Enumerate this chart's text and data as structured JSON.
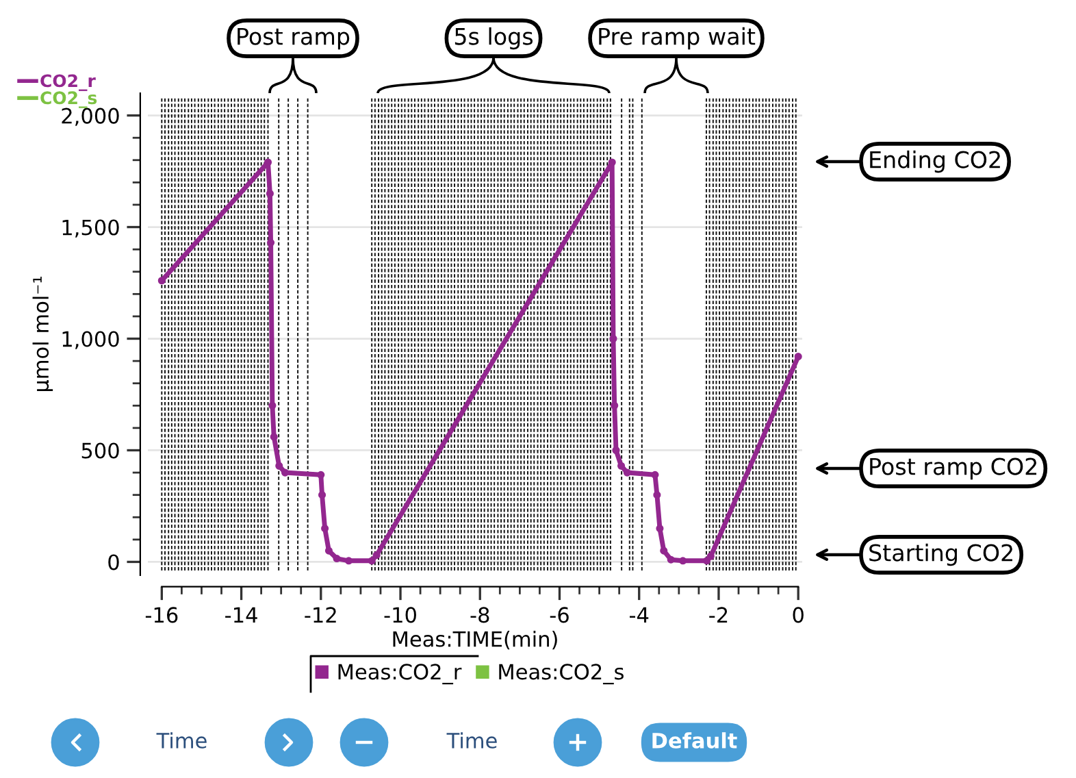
{
  "chart_data": {
    "type": "line",
    "xlabel": "Meas:TIME(min)",
    "ylabel": "µmol mol⁻¹",
    "xlim": [
      -16.35,
      0.1
    ],
    "ylim": [
      -60,
      2100
    ],
    "xticks": [
      -16,
      {
        "value": -15.5,
        "label": null
      },
      -14,
      {
        "value": -15,
        "label": null
      },
      {
        "value": -14.5,
        "label": null
      },
      {
        "value": -13.5,
        "label": null
      },
      {
        "value": -13,
        "label": null
      },
      -12,
      {
        "value": -12.5,
        "label": null
      },
      {
        "value": -11.5,
        "label": null
      },
      {
        "value": -11,
        "label": null
      },
      -10,
      {
        "value": -10.5,
        "label": null
      },
      {
        "value": -9.5,
        "label": null
      },
      {
        "value": -9,
        "label": null
      },
      -8,
      {
        "value": -8.5,
        "label": null
      },
      {
        "value": -7.5,
        "label": null
      },
      {
        "value": -7,
        "label": null
      },
      -6,
      {
        "value": -6.5,
        "label": null
      },
      {
        "value": -5.5,
        "label": null
      },
      {
        "value": -5,
        "label": null
      },
      -4,
      {
        "value": -4.5,
        "label": null
      },
      {
        "value": -3.5,
        "label": null
      },
      {
        "value": -3,
        "label": null
      },
      -2,
      {
        "value": -2.5,
        "label": null
      },
      {
        "value": -1.5,
        "label": null
      },
      {
        "value": -1,
        "label": null
      },
      {
        "value": -0.5,
        "label": null
      },
      0
    ],
    "yticks": [
      0,
      {
        "value": 100,
        "label": null
      },
      {
        "value": 200,
        "label": null
      },
      {
        "value": 300,
        "label": null
      },
      {
        "value": 400,
        "label": null
      },
      500,
      {
        "value": 600,
        "label": null
      },
      {
        "value": 700,
        "label": null
      },
      {
        "value": 800,
        "label": null
      },
      {
        "value": 900,
        "label": null
      },
      {
        "value": 1000,
        "label": "1,000"
      },
      {
        "value": 1100,
        "label": null
      },
      {
        "value": 1200,
        "label": null
      },
      {
        "value": 1300,
        "label": null
      },
      {
        "value": 1400,
        "label": null
      },
      {
        "value": 1500,
        "label": "1,500"
      },
      {
        "value": 1600,
        "label": null
      },
      {
        "value": 1700,
        "label": null
      },
      {
        "value": 1800,
        "label": null
      },
      {
        "value": 1900,
        "label": null
      },
      {
        "value": 2000,
        "label": "2,000"
      }
    ],
    "grid": "y",
    "legend": "top left",
    "marker": "circle",
    "line_style": "solid",
    "series": [
      {
        "name": "CO2_r",
        "color": "#93278f",
        "x": [
          -16,
          -13.33,
          -13.28,
          -13.26,
          -13.22,
          -13.18,
          -13.05,
          -12.9,
          -12.0,
          -11.97,
          -11.9,
          -11.8,
          -11.6,
          -11.3,
          -10.72,
          -10.6,
          -4.68,
          -4.65,
          -4.62,
          -4.58,
          -4.45,
          -4.3,
          -3.6,
          -3.55,
          -3.48,
          -3.38,
          -3.2,
          -2.9,
          -2.3,
          -2.2,
          0
        ],
        "values": [
          1260,
          1790,
          1650,
          1430,
          700,
          560,
          430,
          400,
          390,
          300,
          150,
          50,
          15,
          5,
          5,
          30,
          1790,
          1000,
          700,
          500,
          430,
          400,
          390,
          300,
          150,
          50,
          10,
          5,
          5,
          25,
          920
        ]
      },
      {
        "name": "CO2_s",
        "color": "#7dc242"
      }
    ],
    "annotations": [
      "Post ramp",
      "5s logs",
      "Pre ramp wait",
      "Ending CO2",
      "Post ramp CO2",
      "Starting CO2",
      "Meas:CO2_r",
      "Meas:CO2_s",
      "Time",
      "Time",
      "Default"
    ],
    "ref_lines": [
      {
        "axis": "x",
        "value": -16.0,
        "line_style": "dashed"
      },
      {
        "axis": "x",
        "value": -15.92,
        "line_style": "dashed"
      },
      {
        "axis": "x",
        "value": -15.83,
        "line_style": "dashed"
      },
      {
        "axis": "x",
        "value": -15.75,
        "line_style": "dashed"
      },
      {
        "axis": "x",
        "value": -15.67,
        "line_style": "dashed"
      },
      {
        "axis": "x",
        "value": -15.58,
        "line_style": "dashed"
      },
      {
        "axis": "x",
        "value": -15.5,
        "line_style": "dashed"
      },
      {
        "axis": "x",
        "value": -15.42,
        "line_style": "dashed"
      },
      {
        "axis": "x",
        "value": -15.33,
        "line_style": "dashed"
      },
      {
        "axis": "x",
        "value": -15.25,
        "line_style": "dashed"
      },
      {
        "axis": "x",
        "value": -15.17,
        "line_style": "dashed"
      },
      {
        "axis": "x",
        "value": -15.08,
        "line_style": "dashed"
      },
      {
        "axis": "x",
        "value": -15.0,
        "line_style": "dashed"
      },
      {
        "axis": "x",
        "value": -14.92,
        "line_style": "dashed"
      },
      {
        "axis": "x",
        "value": -14.83,
        "line_style": "dashed"
      },
      {
        "axis": "x",
        "value": -14.75,
        "line_style": "dashed"
      },
      {
        "axis": "x",
        "value": -14.67,
        "line_style": "dashed"
      },
      {
        "axis": "x",
        "value": -14.58,
        "line_style": "dashed"
      },
      {
        "axis": "x",
        "value": -14.5,
        "line_style": "dashed"
      },
      {
        "axis": "x",
        "value": -14.42,
        "line_style": "dashed"
      },
      {
        "axis": "x",
        "value": -14.33,
        "line_style": "dashed"
      },
      {
        "axis": "x",
        "value": -14.25,
        "line_style": "dashed"
      },
      {
        "axis": "x",
        "value": -14.17,
        "line_style": "dashed"
      },
      {
        "axis": "x",
        "value": -14.08,
        "line_style": "dashed"
      },
      {
        "axis": "x",
        "value": -14.0,
        "line_style": "dashed"
      },
      {
        "axis": "x",
        "value": -13.92,
        "line_style": "dashed"
      },
      {
        "axis": "x",
        "value": -13.83,
        "line_style": "dashed"
      },
      {
        "axis": "x",
        "value": -13.75,
        "line_style": "dashed"
      },
      {
        "axis": "x",
        "value": -13.67,
        "line_style": "dashed"
      },
      {
        "axis": "x",
        "value": -13.58,
        "line_style": "dashed"
      },
      {
        "axis": "x",
        "value": -13.5,
        "line_style": "dashed"
      },
      {
        "axis": "x",
        "value": -13.42,
        "line_style": "dashed"
      },
      {
        "axis": "x",
        "value": -13.33,
        "line_style": "dashed"
      },
      {
        "axis": "x",
        "value": -13.06,
        "line_style": "dashed"
      },
      {
        "axis": "x",
        "value": -12.82,
        "line_style": "dashed"
      },
      {
        "axis": "x",
        "value": -12.58,
        "line_style": "dashed"
      },
      {
        "axis": "x",
        "value": -12.33,
        "line_style": "dashed"
      },
      {
        "axis": "x",
        "value": -10.72,
        "line_style": "dashed"
      },
      {
        "axis": "x",
        "value": -10.64,
        "line_style": "dashed"
      },
      {
        "axis": "x",
        "value": -10.55,
        "line_style": "dashed"
      },
      {
        "axis": "x",
        "value": -10.47,
        "line_style": "dashed"
      },
      {
        "axis": "x",
        "value": -10.39,
        "line_style": "dashed"
      },
      {
        "axis": "x",
        "value": -10.3,
        "line_style": "dashed"
      },
      {
        "axis": "x",
        "value": -10.22,
        "line_style": "dashed"
      },
      {
        "axis": "x",
        "value": -10.14,
        "line_style": "dashed"
      },
      {
        "axis": "x",
        "value": -10.05,
        "line_style": "dashed"
      },
      {
        "axis": "x",
        "value": -9.97,
        "line_style": "dashed"
      },
      {
        "axis": "x",
        "value": -9.89,
        "line_style": "dashed"
      },
      {
        "axis": "x",
        "value": -9.8,
        "line_style": "dashed"
      },
      {
        "axis": "x",
        "value": -9.72,
        "line_style": "dashed"
      },
      {
        "axis": "x",
        "value": -9.64,
        "line_style": "dashed"
      },
      {
        "axis": "x",
        "value": -9.55,
        "line_style": "dashed"
      },
      {
        "axis": "x",
        "value": -9.47,
        "line_style": "dashed"
      },
      {
        "axis": "x",
        "value": -9.39,
        "line_style": "dashed"
      },
      {
        "axis": "x",
        "value": -9.3,
        "line_style": "dashed"
      },
      {
        "axis": "x",
        "value": -9.22,
        "line_style": "dashed"
      },
      {
        "axis": "x",
        "value": -9.14,
        "line_style": "dashed"
      },
      {
        "axis": "x",
        "value": -9.05,
        "line_style": "dashed"
      },
      {
        "axis": "x",
        "value": -8.97,
        "line_style": "dashed"
      },
      {
        "axis": "x",
        "value": -8.89,
        "line_style": "dashed"
      },
      {
        "axis": "x",
        "value": -8.8,
        "line_style": "dashed"
      },
      {
        "axis": "x",
        "value": -8.72,
        "line_style": "dashed"
      },
      {
        "axis": "x",
        "value": -8.64,
        "line_style": "dashed"
      },
      {
        "axis": "x",
        "value": -8.55,
        "line_style": "dashed"
      },
      {
        "axis": "x",
        "value": -8.47,
        "line_style": "dashed"
      },
      {
        "axis": "x",
        "value": -8.39,
        "line_style": "dashed"
      },
      {
        "axis": "x",
        "value": -8.3,
        "line_style": "dashed"
      },
      {
        "axis": "x",
        "value": -8.22,
        "line_style": "dashed"
      },
      {
        "axis": "x",
        "value": -8.14,
        "line_style": "dashed"
      },
      {
        "axis": "x",
        "value": -8.05,
        "line_style": "dashed"
      },
      {
        "axis": "x",
        "value": -7.97,
        "line_style": "dashed"
      },
      {
        "axis": "x",
        "value": -7.89,
        "line_style": "dashed"
      },
      {
        "axis": "x",
        "value": -7.8,
        "line_style": "dashed"
      },
      {
        "axis": "x",
        "value": -7.72,
        "line_style": "dashed"
      },
      {
        "axis": "x",
        "value": -7.64,
        "line_style": "dashed"
      },
      {
        "axis": "x",
        "value": -7.55,
        "line_style": "dashed"
      },
      {
        "axis": "x",
        "value": -7.47,
        "line_style": "dashed"
      },
      {
        "axis": "x",
        "value": -7.39,
        "line_style": "dashed"
      },
      {
        "axis": "x",
        "value": -7.3,
        "line_style": "dashed"
      },
      {
        "axis": "x",
        "value": -7.22,
        "line_style": "dashed"
      },
      {
        "axis": "x",
        "value": -7.14,
        "line_style": "dashed"
      },
      {
        "axis": "x",
        "value": -7.05,
        "line_style": "dashed"
      },
      {
        "axis": "x",
        "value": -6.97,
        "line_style": "dashed"
      },
      {
        "axis": "x",
        "value": -6.89,
        "line_style": "dashed"
      },
      {
        "axis": "x",
        "value": -6.8,
        "line_style": "dashed"
      },
      {
        "axis": "x",
        "value": -6.72,
        "line_style": "dashed"
      },
      {
        "axis": "x",
        "value": -6.64,
        "line_style": "dashed"
      },
      {
        "axis": "x",
        "value": -6.55,
        "line_style": "dashed"
      },
      {
        "axis": "x",
        "value": -6.47,
        "line_style": "dashed"
      },
      {
        "axis": "x",
        "value": -6.39,
        "line_style": "dashed"
      },
      {
        "axis": "x",
        "value": -6.3,
        "line_style": "dashed"
      },
      {
        "axis": "x",
        "value": -6.22,
        "line_style": "dashed"
      },
      {
        "axis": "x",
        "value": -6.14,
        "line_style": "dashed"
      },
      {
        "axis": "x",
        "value": -6.05,
        "line_style": "dashed"
      },
      {
        "axis": "x",
        "value": -5.97,
        "line_style": "dashed"
      },
      {
        "axis": "x",
        "value": -5.89,
        "line_style": "dashed"
      },
      {
        "axis": "x",
        "value": -5.8,
        "line_style": "dashed"
      },
      {
        "axis": "x",
        "value": -5.72,
        "line_style": "dashed"
      },
      {
        "axis": "x",
        "value": -5.64,
        "line_style": "dashed"
      },
      {
        "axis": "x",
        "value": -5.55,
        "line_style": "dashed"
      },
      {
        "axis": "x",
        "value": -5.47,
        "line_style": "dashed"
      },
      {
        "axis": "x",
        "value": -5.39,
        "line_style": "dashed"
      },
      {
        "axis": "x",
        "value": -5.3,
        "line_style": "dashed"
      },
      {
        "axis": "x",
        "value": -5.22,
        "line_style": "dashed"
      },
      {
        "axis": "x",
        "value": -5.14,
        "line_style": "dashed"
      },
      {
        "axis": "x",
        "value": -5.05,
        "line_style": "dashed"
      },
      {
        "axis": "x",
        "value": -4.97,
        "line_style": "dashed"
      },
      {
        "axis": "x",
        "value": -4.89,
        "line_style": "dashed"
      },
      {
        "axis": "x",
        "value": -4.8,
        "line_style": "dashed"
      },
      {
        "axis": "x",
        "value": -4.72,
        "line_style": "dashed"
      },
      {
        "axis": "x",
        "value": -4.44,
        "line_style": "dashed"
      },
      {
        "axis": "x",
        "value": -4.24,
        "line_style": "dashed"
      },
      {
        "axis": "x",
        "value": -4.16,
        "line_style": "dashed"
      },
      {
        "axis": "x",
        "value": -3.93,
        "line_style": "dashed"
      },
      {
        "axis": "x",
        "value": -2.31,
        "line_style": "dashed"
      },
      {
        "axis": "x",
        "value": -2.23,
        "line_style": "dashed"
      },
      {
        "axis": "x",
        "value": -2.14,
        "line_style": "dashed"
      },
      {
        "axis": "x",
        "value": -2.06,
        "line_style": "dashed"
      },
      {
        "axis": "x",
        "value": -1.98,
        "line_style": "dashed"
      },
      {
        "axis": "x",
        "value": -1.89,
        "line_style": "dashed"
      },
      {
        "axis": "x",
        "value": -1.81,
        "line_style": "dashed"
      },
      {
        "axis": "x",
        "value": -1.73,
        "line_style": "dashed"
      },
      {
        "axis": "x",
        "value": -1.64,
        "line_style": "dashed"
      },
      {
        "axis": "x",
        "value": -1.56,
        "line_style": "dashed"
      },
      {
        "axis": "x",
        "value": -1.48,
        "line_style": "dashed"
      },
      {
        "axis": "x",
        "value": -1.39,
        "line_style": "dashed"
      },
      {
        "axis": "x",
        "value": -1.31,
        "line_style": "dashed"
      },
      {
        "axis": "x",
        "value": -1.23,
        "line_style": "dashed"
      },
      {
        "axis": "x",
        "value": -1.14,
        "line_style": "dashed"
      },
      {
        "axis": "x",
        "value": -1.06,
        "line_style": "dashed"
      },
      {
        "axis": "x",
        "value": -0.98,
        "line_style": "dashed"
      },
      {
        "axis": "x",
        "value": -0.89,
        "line_style": "dashed"
      },
      {
        "axis": "x",
        "value": -0.81,
        "line_style": "dashed"
      },
      {
        "axis": "x",
        "value": -0.73,
        "line_style": "dashed"
      },
      {
        "axis": "x",
        "value": -0.64,
        "line_style": "dashed"
      },
      {
        "axis": "x",
        "value": -0.56,
        "line_style": "dashed"
      },
      {
        "axis": "x",
        "value": -0.48,
        "line_style": "dashed"
      },
      {
        "axis": "x",
        "value": -0.39,
        "line_style": "dashed"
      },
      {
        "axis": "x",
        "value": -0.31,
        "line_style": "dashed"
      },
      {
        "axis": "x",
        "value": -0.23,
        "line_style": "dashed"
      },
      {
        "axis": "x",
        "value": -0.14,
        "line_style": "dashed"
      },
      {
        "axis": "x",
        "value": -0.06,
        "line_style": "dashed"
      }
    ]
  }
}
